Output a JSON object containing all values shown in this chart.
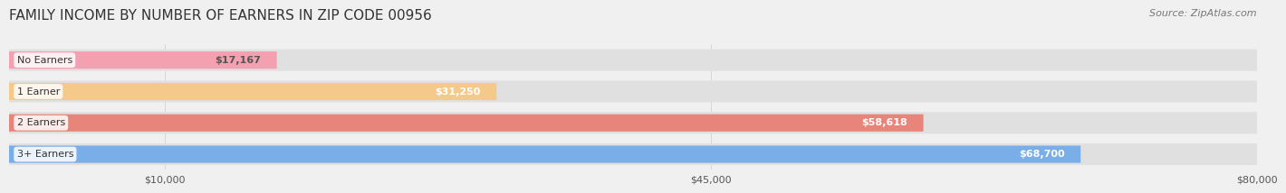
{
  "title": "FAMILY INCOME BY NUMBER OF EARNERS IN ZIP CODE 00956",
  "source": "Source: ZipAtlas.com",
  "categories": [
    "No Earners",
    "1 Earner",
    "2 Earners",
    "3+ Earners"
  ],
  "values": [
    17167,
    31250,
    58618,
    68700
  ],
  "labels": [
    "$17,167",
    "$31,250",
    "$58,618",
    "$68,700"
  ],
  "bar_colors": [
    "#f4a0b0",
    "#f5c98a",
    "#e8857a",
    "#7aaee8"
  ],
  "bar_edge_colors": [
    "#e07090",
    "#e0a050",
    "#d06060",
    "#5090d0"
  ],
  "bg_color": "#f0f0f0",
  "bar_bg_color": "#e8e8e8",
  "label_bg_color": "#ffffff",
  "xlim": [
    0,
    80000
  ],
  "xticks": [
    10000,
    45000,
    80000
  ],
  "xtick_labels": [
    "$10,000",
    "$45,000",
    "$80,000"
  ],
  "title_fontsize": 11,
  "source_fontsize": 8,
  "label_fontsize": 8,
  "cat_fontsize": 8,
  "bar_height": 0.55,
  "fig_width": 14.06,
  "fig_height": 2.32
}
